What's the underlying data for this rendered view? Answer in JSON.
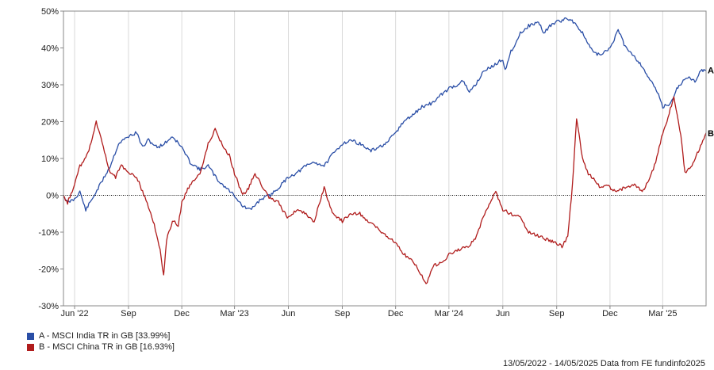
{
  "chart_data": {
    "type": "line",
    "y_ticks": [
      50,
      40,
      30,
      20,
      10,
      0,
      -10,
      -20,
      -30
    ],
    "y_tick_labels": [
      "50%",
      "40%",
      "30%",
      "20%",
      "10%",
      "0%",
      "-10%",
      "-20%",
      "-30%"
    ],
    "ylim": [
      -30,
      50
    ],
    "x_range": [
      "2022-05-13",
      "2025-05-14"
    ],
    "x_ticks": [
      {
        "date": "2022-06-01",
        "label": "Jun '22"
      },
      {
        "date": "2022-09-01",
        "label": "Sep"
      },
      {
        "date": "2022-12-01",
        "label": "Dec"
      },
      {
        "date": "2023-03-01",
        "label": "Mar '23"
      },
      {
        "date": "2023-06-01",
        "label": "Jun"
      },
      {
        "date": "2023-09-01",
        "label": "Sep"
      },
      {
        "date": "2023-12-01",
        "label": "Dec"
      },
      {
        "date": "2024-03-01",
        "label": "Mar '24"
      },
      {
        "date": "2024-06-01",
        "label": "Jun"
      },
      {
        "date": "2024-09-01",
        "label": "Sep"
      },
      {
        "date": "2024-12-01",
        "label": "Dec"
      },
      {
        "date": "2025-03-01",
        "label": "Mar '25"
      }
    ],
    "grid": "vertical",
    "legend_position": "bottom-left",
    "series": [
      {
        "name": "MSCI India TR in GB",
        "marker": "A",
        "legend_label": "A - MSCI India TR in GB [33.99%]",
        "color": "#2a4ea6",
        "points": [
          [
            "2022-05-13",
            0
          ],
          [
            "2022-05-20",
            -2
          ],
          [
            "2022-06-01",
            -1
          ],
          [
            "2022-06-10",
            1
          ],
          [
            "2022-06-20",
            -4
          ],
          [
            "2022-07-01",
            -1
          ],
          [
            "2022-07-15",
            3
          ],
          [
            "2022-08-01",
            8
          ],
          [
            "2022-08-15",
            14
          ],
          [
            "2022-09-01",
            16
          ],
          [
            "2022-09-15",
            17
          ],
          [
            "2022-09-25",
            13
          ],
          [
            "2022-10-05",
            15
          ],
          [
            "2022-10-20",
            13
          ],
          [
            "2022-11-01",
            14
          ],
          [
            "2022-11-15",
            16
          ],
          [
            "2022-12-01",
            13
          ],
          [
            "2022-12-15",
            9
          ],
          [
            "2023-01-01",
            7
          ],
          [
            "2023-01-15",
            8
          ],
          [
            "2023-02-01",
            4
          ],
          [
            "2023-02-15",
            2
          ],
          [
            "2023-03-01",
            0
          ],
          [
            "2023-03-15",
            -3
          ],
          [
            "2023-03-28",
            -4
          ],
          [
            "2023-04-15",
            -1
          ],
          [
            "2023-05-01",
            0
          ],
          [
            "2023-05-15",
            2
          ],
          [
            "2023-06-01",
            5
          ],
          [
            "2023-06-15",
            6
          ],
          [
            "2023-07-01",
            8
          ],
          [
            "2023-07-15",
            9
          ],
          [
            "2023-08-01",
            8
          ],
          [
            "2023-08-15",
            11
          ],
          [
            "2023-09-01",
            14
          ],
          [
            "2023-09-15",
            15
          ],
          [
            "2023-10-01",
            14
          ],
          [
            "2023-10-20",
            12
          ],
          [
            "2023-11-01",
            13
          ],
          [
            "2023-11-15",
            14
          ],
          [
            "2023-12-01",
            17
          ],
          [
            "2023-12-15",
            20
          ],
          [
            "2024-01-01",
            22
          ],
          [
            "2024-01-15",
            24
          ],
          [
            "2024-02-01",
            25
          ],
          [
            "2024-02-15",
            27
          ],
          [
            "2024-03-01",
            29
          ],
          [
            "2024-03-15",
            30
          ],
          [
            "2024-03-25",
            31
          ],
          [
            "2024-04-05",
            28
          ],
          [
            "2024-04-15",
            30
          ],
          [
            "2024-05-01",
            34
          ],
          [
            "2024-05-15",
            35
          ],
          [
            "2024-06-01",
            37
          ],
          [
            "2024-06-05",
            34
          ],
          [
            "2024-06-15",
            39
          ],
          [
            "2024-07-01",
            44
          ],
          [
            "2024-07-15",
            46
          ],
          [
            "2024-08-01",
            47
          ],
          [
            "2024-08-10",
            44
          ],
          [
            "2024-08-20",
            46
          ],
          [
            "2024-09-01",
            47
          ],
          [
            "2024-09-20",
            48
          ],
          [
            "2024-10-01",
            47
          ],
          [
            "2024-10-15",
            44
          ],
          [
            "2024-11-01",
            39
          ],
          [
            "2024-11-15",
            38
          ],
          [
            "2024-12-01",
            40
          ],
          [
            "2024-12-10",
            43
          ],
          [
            "2024-12-15",
            45
          ],
          [
            "2024-12-25",
            41
          ],
          [
            "2025-01-10",
            38
          ],
          [
            "2025-01-25",
            35
          ],
          [
            "2025-02-05",
            32
          ],
          [
            "2025-02-20",
            28
          ],
          [
            "2025-03-01",
            24
          ],
          [
            "2025-03-15",
            25
          ],
          [
            "2025-03-25",
            29
          ],
          [
            "2025-04-05",
            31
          ],
          [
            "2025-04-15",
            32
          ],
          [
            "2025-04-25",
            31
          ],
          [
            "2025-05-05",
            34
          ],
          [
            "2025-05-14",
            33.99
          ]
        ]
      },
      {
        "name": "MSCI China TR in GB",
        "marker": "B",
        "legend_label": "B - MSCI China TR in GB [16.93%]",
        "color": "#b01c1c",
        "points": [
          [
            "2022-05-13",
            0
          ],
          [
            "2022-05-20",
            -2
          ],
          [
            "2022-06-01",
            3
          ],
          [
            "2022-06-10",
            8
          ],
          [
            "2022-06-20",
            10
          ],
          [
            "2022-07-01",
            15
          ],
          [
            "2022-07-08",
            20
          ],
          [
            "2022-07-20",
            13
          ],
          [
            "2022-08-01",
            6
          ],
          [
            "2022-08-10",
            5
          ],
          [
            "2022-08-20",
            8
          ],
          [
            "2022-09-01",
            6
          ],
          [
            "2022-09-15",
            5
          ],
          [
            "2022-09-25",
            1
          ],
          [
            "2022-10-05",
            -3
          ],
          [
            "2022-10-15",
            -8
          ],
          [
            "2022-10-25",
            -15
          ],
          [
            "2022-10-31",
            -22
          ],
          [
            "2022-11-05",
            -12
          ],
          [
            "2022-11-15",
            -7
          ],
          [
            "2022-11-25",
            -8
          ],
          [
            "2022-12-01",
            -2
          ],
          [
            "2022-12-15",
            3
          ],
          [
            "2023-01-01",
            6
          ],
          [
            "2023-01-15",
            14
          ],
          [
            "2023-01-27",
            18
          ],
          [
            "2023-02-10",
            13
          ],
          [
            "2023-02-20",
            11
          ],
          [
            "2023-03-01",
            6
          ],
          [
            "2023-03-15",
            0
          ],
          [
            "2023-03-25",
            2
          ],
          [
            "2023-04-05",
            6
          ],
          [
            "2023-04-15",
            3
          ],
          [
            "2023-05-01",
            -1
          ],
          [
            "2023-05-15",
            -2
          ],
          [
            "2023-05-30",
            -6
          ],
          [
            "2023-06-15",
            -4
          ],
          [
            "2023-07-01",
            -5
          ],
          [
            "2023-07-15",
            -7
          ],
          [
            "2023-08-01",
            2
          ],
          [
            "2023-08-15",
            -5
          ],
          [
            "2023-09-01",
            -7
          ],
          [
            "2023-09-15",
            -5
          ],
          [
            "2023-10-01",
            -5
          ],
          [
            "2023-10-15",
            -7
          ],
          [
            "2023-11-01",
            -9
          ],
          [
            "2023-11-15",
            -11
          ],
          [
            "2023-12-01",
            -13
          ],
          [
            "2023-12-15",
            -16
          ],
          [
            "2024-01-01",
            -18
          ],
          [
            "2024-01-15",
            -22
          ],
          [
            "2024-01-22",
            -24
          ],
          [
            "2024-02-05",
            -19
          ],
          [
            "2024-02-20",
            -18
          ],
          [
            "2024-03-01",
            -16
          ],
          [
            "2024-03-15",
            -15
          ],
          [
            "2024-04-01",
            -14
          ],
          [
            "2024-04-15",
            -12
          ],
          [
            "2024-05-01",
            -5
          ],
          [
            "2024-05-20",
            1
          ],
          [
            "2024-06-01",
            -4
          ],
          [
            "2024-06-15",
            -5
          ],
          [
            "2024-07-01",
            -6
          ],
          [
            "2024-07-15",
            -10
          ],
          [
            "2024-08-01",
            -11
          ],
          [
            "2024-08-15",
            -12
          ],
          [
            "2024-09-01",
            -13
          ],
          [
            "2024-09-10",
            -14
          ],
          [
            "2024-09-20",
            -11
          ],
          [
            "2024-09-28",
            3
          ],
          [
            "2024-10-05",
            21
          ],
          [
            "2024-10-15",
            10
          ],
          [
            "2024-10-25",
            6
          ],
          [
            "2024-11-05",
            4
          ],
          [
            "2024-11-15",
            2
          ],
          [
            "2024-11-25",
            3
          ],
          [
            "2024-12-10",
            1
          ],
          [
            "2024-12-25",
            2
          ],
          [
            "2025-01-10",
            3
          ],
          [
            "2025-01-25",
            1
          ],
          [
            "2025-02-05",
            4
          ],
          [
            "2025-02-15",
            8
          ],
          [
            "2025-03-01",
            17
          ],
          [
            "2025-03-10",
            21
          ],
          [
            "2025-03-20",
            27
          ],
          [
            "2025-04-01",
            16
          ],
          [
            "2025-04-08",
            6
          ],
          [
            "2025-04-20",
            8
          ],
          [
            "2025-05-01",
            12
          ],
          [
            "2025-05-14",
            16.93
          ]
        ]
      }
    ],
    "source_note": "13/05/2022 - 14/05/2025 Data from FE fundinfo2025"
  }
}
